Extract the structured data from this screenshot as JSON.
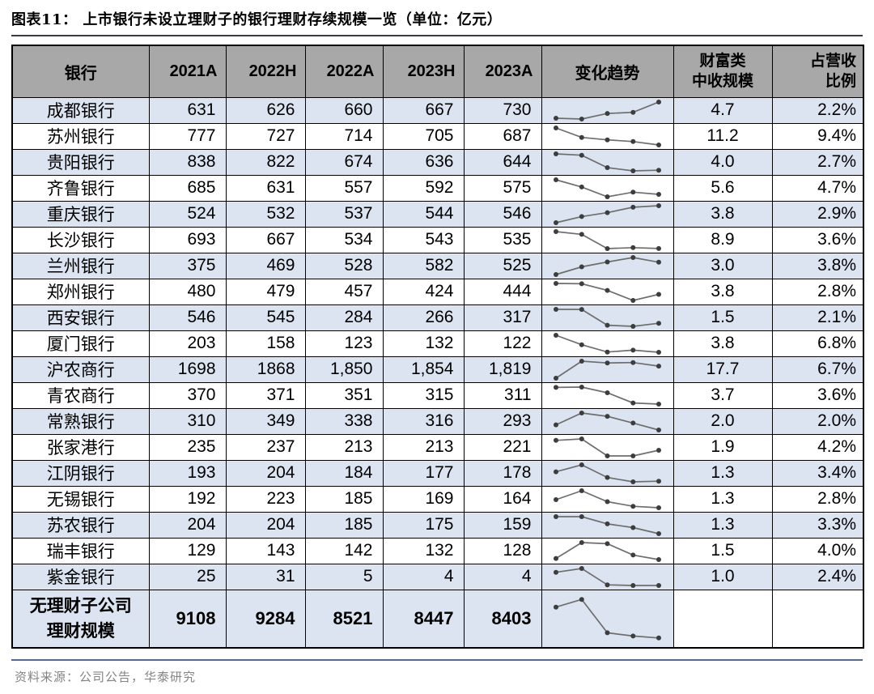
{
  "title": "图表11：  上市银行未设立理财子的银行理财存续规模一览（单位：亿元）",
  "source": "资料来源：公司公告，华泰研究",
  "colors": {
    "header_bg": "#a8a8a8",
    "row_alt_bg": "#dce4f1",
    "border": "#000000",
    "title_rule": "#3a3a46",
    "source_rule": "#54698e",
    "source_text": "#848484",
    "spark_line": "#6e6e6e",
    "spark_dot": "#3d3d3d"
  },
  "table": {
    "headers": [
      "银行",
      "2021A",
      "2022H",
      "2022A",
      "2023H",
      "2023A",
      "变化趋势",
      "财富类\n中收规模",
      "占营收\n比例"
    ],
    "rows": [
      {
        "bank": "成都银行",
        "values": [
          "631",
          "626",
          "660",
          "667",
          "730"
        ],
        "wealth": "4.7",
        "pct": "2.2%"
      },
      {
        "bank": "苏州银行",
        "values": [
          "777",
          "727",
          "714",
          "705",
          "687"
        ],
        "wealth": "11.2",
        "pct": "9.4%"
      },
      {
        "bank": "贵阳银行",
        "values": [
          "838",
          "822",
          "674",
          "636",
          "644"
        ],
        "wealth": "4.0",
        "pct": "2.7%"
      },
      {
        "bank": "齐鲁银行",
        "values": [
          "685",
          "631",
          "557",
          "592",
          "575"
        ],
        "wealth": "5.6",
        "pct": "4.7%"
      },
      {
        "bank": "重庆银行",
        "values": [
          "524",
          "532",
          "537",
          "544",
          "546"
        ],
        "wealth": "3.8",
        "pct": "2.9%"
      },
      {
        "bank": "长沙银行",
        "values": [
          "693",
          "667",
          "534",
          "543",
          "535"
        ],
        "wealth": "8.9",
        "pct": "3.6%"
      },
      {
        "bank": "兰州银行",
        "values": [
          "375",
          "469",
          "528",
          "582",
          "525"
        ],
        "wealth": "3.0",
        "pct": "3.8%"
      },
      {
        "bank": "郑州银行",
        "values": [
          "480",
          "479",
          "457",
          "424",
          "444"
        ],
        "wealth": "3.8",
        "pct": "2.8%"
      },
      {
        "bank": "西安银行",
        "values": [
          "546",
          "545",
          "284",
          "266",
          "317"
        ],
        "wealth": "1.5",
        "pct": "2.1%"
      },
      {
        "bank": "厦门银行",
        "values": [
          "203",
          "158",
          "123",
          "132",
          "122"
        ],
        "wealth": "3.8",
        "pct": "6.8%"
      },
      {
        "bank": "沪农商行",
        "values": [
          "1698",
          "1868",
          "1,850",
          "1,854",
          "1,819"
        ],
        "wealth": "17.7",
        "pct": "6.7%"
      },
      {
        "bank": "青农商行",
        "values": [
          "370",
          "371",
          "351",
          "315",
          "311"
        ],
        "wealth": "3.7",
        "pct": "3.6%"
      },
      {
        "bank": "常熟银行",
        "values": [
          "310",
          "349",
          "338",
          "316",
          "293"
        ],
        "wealth": "2.0",
        "pct": "2.0%"
      },
      {
        "bank": "张家港行",
        "values": [
          "235",
          "237",
          "213",
          "213",
          "221"
        ],
        "wealth": "1.9",
        "pct": "4.2%"
      },
      {
        "bank": "江阴银行",
        "values": [
          "193",
          "204",
          "184",
          "177",
          "178"
        ],
        "wealth": "1.3",
        "pct": "3.4%"
      },
      {
        "bank": "无锡银行",
        "values": [
          "192",
          "223",
          "185",
          "169",
          "164"
        ],
        "wealth": "1.3",
        "pct": "2.8%"
      },
      {
        "bank": "苏农银行",
        "values": [
          "204",
          "204",
          "185",
          "175",
          "159"
        ],
        "wealth": "1.3",
        "pct": "3.3%"
      },
      {
        "bank": "瑞丰银行",
        "values": [
          "129",
          "143",
          "142",
          "132",
          "128"
        ],
        "wealth": "1.5",
        "pct": "4.0%"
      },
      {
        "bank": "紫金银行",
        "values": [
          "25",
          "31",
          "5",
          "4",
          "4"
        ],
        "wealth": "1.0",
        "pct": "2.4%"
      }
    ],
    "total_row": {
      "label": "无理财子公司\n理财规模",
      "values": [
        "9108",
        "9284",
        "8521",
        "8447",
        "8403"
      ],
      "wealth": "",
      "pct": ""
    }
  },
  "chart_data": {
    "type": "table",
    "title": "上市银行未设立理财子的银行理财存续规模一览（单位：亿元）",
    "x": [
      "2021A",
      "2022H",
      "2022A",
      "2023H",
      "2023A"
    ],
    "sparkline_note": "变化趋势 column renders each row's five values as a dot-marked line",
    "series": [
      {
        "name": "成都银行",
        "values": [
          631,
          626,
          660,
          667,
          730
        ],
        "wealth_income": 4.7,
        "pct_of_revenue": "2.2%"
      },
      {
        "name": "苏州银行",
        "values": [
          777,
          727,
          714,
          705,
          687
        ],
        "wealth_income": 11.2,
        "pct_of_revenue": "9.4%"
      },
      {
        "name": "贵阳银行",
        "values": [
          838,
          822,
          674,
          636,
          644
        ],
        "wealth_income": 4.0,
        "pct_of_revenue": "2.7%"
      },
      {
        "name": "齐鲁银行",
        "values": [
          685,
          631,
          557,
          592,
          575
        ],
        "wealth_income": 5.6,
        "pct_of_revenue": "4.7%"
      },
      {
        "name": "重庆银行",
        "values": [
          524,
          532,
          537,
          544,
          546
        ],
        "wealth_income": 3.8,
        "pct_of_revenue": "2.9%"
      },
      {
        "name": "长沙银行",
        "values": [
          693,
          667,
          534,
          543,
          535
        ],
        "wealth_income": 8.9,
        "pct_of_revenue": "3.6%"
      },
      {
        "name": "兰州银行",
        "values": [
          375,
          469,
          528,
          582,
          525
        ],
        "wealth_income": 3.0,
        "pct_of_revenue": "3.8%"
      },
      {
        "name": "郑州银行",
        "values": [
          480,
          479,
          457,
          424,
          444
        ],
        "wealth_income": 3.8,
        "pct_of_revenue": "2.8%"
      },
      {
        "name": "西安银行",
        "values": [
          546,
          545,
          284,
          266,
          317
        ],
        "wealth_income": 1.5,
        "pct_of_revenue": "2.1%"
      },
      {
        "name": "厦门银行",
        "values": [
          203,
          158,
          123,
          132,
          122
        ],
        "wealth_income": 3.8,
        "pct_of_revenue": "6.8%"
      },
      {
        "name": "沪农商行",
        "values": [
          1698,
          1868,
          1850,
          1854,
          1819
        ],
        "wealth_income": 17.7,
        "pct_of_revenue": "6.7%"
      },
      {
        "name": "青农商行",
        "values": [
          370,
          371,
          351,
          315,
          311
        ],
        "wealth_income": 3.7,
        "pct_of_revenue": "3.6%"
      },
      {
        "name": "常熟银行",
        "values": [
          310,
          349,
          338,
          316,
          293
        ],
        "wealth_income": 2.0,
        "pct_of_revenue": "2.0%"
      },
      {
        "name": "张家港行",
        "values": [
          235,
          237,
          213,
          213,
          221
        ],
        "wealth_income": 1.9,
        "pct_of_revenue": "4.2%"
      },
      {
        "name": "江阴银行",
        "values": [
          193,
          204,
          184,
          177,
          178
        ],
        "wealth_income": 1.3,
        "pct_of_revenue": "3.4%"
      },
      {
        "name": "无锡银行",
        "values": [
          192,
          223,
          185,
          169,
          164
        ],
        "wealth_income": 1.3,
        "pct_of_revenue": "2.8%"
      },
      {
        "name": "苏农银行",
        "values": [
          204,
          204,
          185,
          175,
          159
        ],
        "wealth_income": 1.3,
        "pct_of_revenue": "3.3%"
      },
      {
        "name": "瑞丰银行",
        "values": [
          129,
          143,
          142,
          132,
          128
        ],
        "wealth_income": 1.5,
        "pct_of_revenue": "4.0%"
      },
      {
        "name": "紫金银行",
        "values": [
          25,
          31,
          5,
          4,
          4
        ],
        "wealth_income": 1.0,
        "pct_of_revenue": "2.4%"
      },
      {
        "name": "无理财子公司理财规模",
        "values": [
          9108,
          9284,
          8521,
          8447,
          8403
        ],
        "wealth_income": null,
        "pct_of_revenue": null
      }
    ]
  }
}
